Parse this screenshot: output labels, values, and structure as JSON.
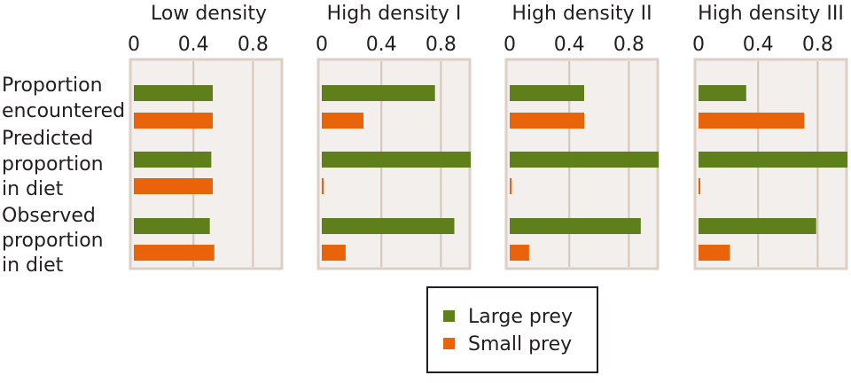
{
  "chart_data": {
    "type": "bar",
    "orientation": "horizontal",
    "xlim": [
      0,
      1.0
    ],
    "ticks": [
      0,
      0.4,
      0.8
    ],
    "tick_labels": [
      "0",
      "0.4",
      "0.8"
    ],
    "row_labels": [
      [
        "Proportion",
        "encountered"
      ],
      [
        "Predicted",
        "proportion",
        "in diet"
      ],
      [
        "Observed",
        "proportion",
        "in diet"
      ]
    ],
    "categories": [
      "Proportion encountered",
      "Predicted proportion in diet",
      "Observed proportion in diet"
    ],
    "series_colors": {
      "Large prey": "#5f7f1a",
      "Small prey": "#e8630a"
    },
    "panels": [
      {
        "title": "Low density",
        "series": [
          {
            "name": "Large prey",
            "values": [
              0.53,
              0.52,
              0.51
            ]
          },
          {
            "name": "Small prey",
            "values": [
              0.53,
              0.53,
              0.54
            ]
          }
        ]
      },
      {
        "title": "High density I",
        "series": [
          {
            "name": "Large prey",
            "values": [
              0.76,
              1.0,
              0.89
            ]
          },
          {
            "name": "Small prey",
            "values": [
              0.28,
              0.0,
              0.16
            ]
          }
        ]
      },
      {
        "title": "High density II",
        "series": [
          {
            "name": "Large prey",
            "values": [
              0.5,
              1.0,
              0.88
            ]
          },
          {
            "name": "Small prey",
            "values": [
              0.5,
              0.0,
              0.13
            ]
          }
        ]
      },
      {
        "title": "High density III",
        "series": [
          {
            "name": "Large prey",
            "values": [
              0.32,
              1.0,
              0.79
            ]
          },
          {
            "name": "Small prey",
            "values": [
              0.71,
              0.0,
              0.21
            ]
          }
        ]
      }
    ],
    "legend": {
      "position": "bottom-center",
      "entries": [
        "Large prey",
        "Small prey"
      ]
    },
    "grid": true
  },
  "colors": {
    "panel_background": "#f3efec",
    "panel_border": "#dccfc4",
    "gridline": "#d3c6bb",
    "text": "#231f20"
  }
}
